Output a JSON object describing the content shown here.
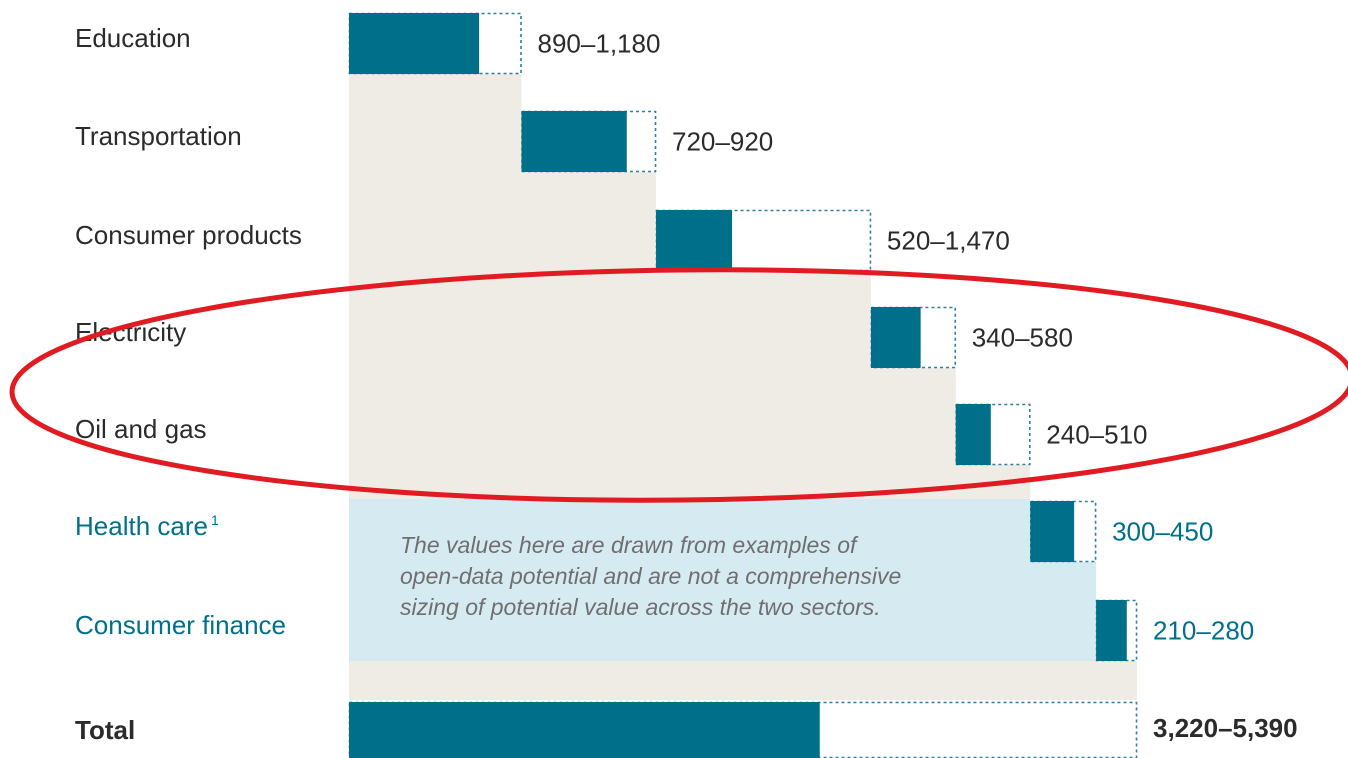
{
  "chart_data": {
    "type": "bar",
    "subtype": "waterfall-range",
    "categories": [
      "Education",
      "Transportation",
      "Consumer products",
      "Electricity",
      "Oil and gas",
      "Health care",
      "Consumer finance",
      "Total"
    ],
    "footnote_marks": [
      "",
      "",
      "",
      "",
      "",
      "1",
      "",
      ""
    ],
    "low": [
      890,
      720,
      520,
      340,
      240,
      300,
      210,
      3220
    ],
    "high": [
      1180,
      920,
      1470,
      580,
      510,
      450,
      280,
      5390
    ],
    "value_labels": [
      "890–1,180",
      "720–920",
      "520–1,470",
      "340–580",
      "240–510",
      "300–450",
      "210–280",
      "3,220–5,390"
    ],
    "highlight_group": [
      "Health care",
      "Consumer finance"
    ],
    "note": [
      "The values here are drawn from examples of",
      "open-data potential and are not a comprehensive",
      "sizing of potential value across the two sectors."
    ],
    "annotation": "red ellipse around Electricity and Oil and gas",
    "colors": {
      "bar": "#00708a",
      "dotted": "#2f7fa3",
      "background": "#efece5",
      "highlight_bg": "#d6eaf2",
      "text": "#2b2b2b",
      "highlight_text": "#00708a",
      "ellipse": "#e11b22"
    }
  }
}
